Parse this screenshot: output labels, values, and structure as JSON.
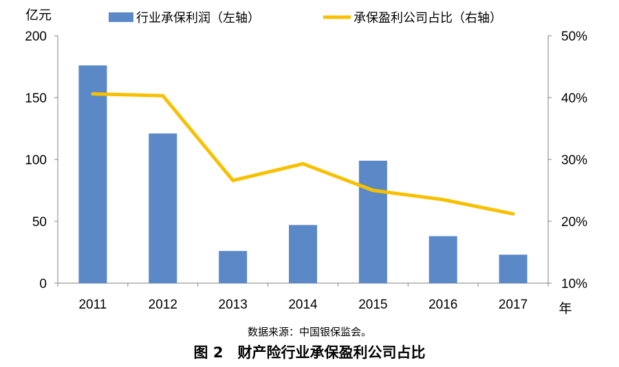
{
  "chart_data": {
    "type": "bar",
    "categories": [
      "2011",
      "2012",
      "2013",
      "2014",
      "2015",
      "2016",
      "2017"
    ],
    "series": [
      {
        "name": "行业承保利润（左轴）",
        "type": "bar",
        "axis": "left",
        "color": "#5B89C8",
        "values": [
          176,
          121,
          26,
          47,
          99,
          38,
          23
        ]
      },
      {
        "name": "承保盈利公司占比（右轴）",
        "type": "line",
        "axis": "right",
        "color": "#F8C000",
        "values": [
          40.6,
          40.3,
          26.6,
          29.3,
          25.0,
          23.5,
          21.2
        ],
        "unit": "%"
      }
    ],
    "y_left": {
      "label": "亿元",
      "range": [
        0,
        200
      ],
      "ticks": [
        "0",
        "50",
        "100",
        "150",
        "200"
      ]
    },
    "y_right": {
      "range": [
        10,
        50
      ],
      "ticks": [
        "10%",
        "20%",
        "30%",
        "40%",
        "50%"
      ]
    },
    "x_unit": "年",
    "legend_position": "top",
    "grid": false
  },
  "source": "数据来源：中国银保监会。",
  "caption": "图 2　财产险行业承保盈利公司占比"
}
